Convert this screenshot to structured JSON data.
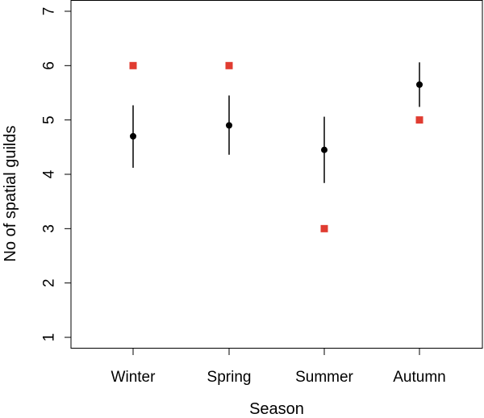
{
  "chart_data": {
    "type": "scatter",
    "xlabel": "Season",
    "ylabel": "No of spatial guilds",
    "categories": [
      "Winter",
      "Spring",
      "Summer",
      "Autumn"
    ],
    "ylim": [
      0.8,
      7.2
    ],
    "yticks": [
      1,
      2,
      3,
      4,
      5,
      6,
      7
    ],
    "grid": false,
    "series": [
      {
        "marker": "circle",
        "color": "#000000",
        "values": [
          4.7,
          4.9,
          4.45,
          5.65
        ],
        "lower": [
          4.12,
          4.36,
          3.84,
          5.24
        ],
        "upper": [
          5.27,
          5.45,
          5.06,
          6.06
        ]
      },
      {
        "marker": "square",
        "color": "#e03c31",
        "values": [
          6,
          6,
          3,
          5
        ]
      }
    ]
  }
}
